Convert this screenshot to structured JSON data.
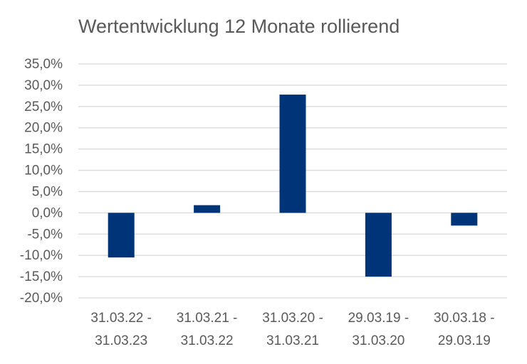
{
  "chart_data": {
    "type": "bar",
    "title": "Wertentwicklung 12 Monate rollierend",
    "xlabel": "",
    "ylabel": "",
    "categories": [
      [
        "31.03.22 -",
        "31.03.23"
      ],
      [
        "31.03.21 -",
        "31.03.22"
      ],
      [
        "31.03.20 -",
        "31.03.21"
      ],
      [
        "29.03.19 -",
        "31.03.20"
      ],
      [
        "30.03.18 -",
        "29.03.19"
      ]
    ],
    "values": [
      -10.5,
      1.8,
      27.8,
      -15.0,
      -3.0
    ],
    "ylim": [
      -20,
      35
    ],
    "yticks": [
      35,
      30,
      25,
      20,
      15,
      10,
      5,
      0,
      -5,
      -10,
      -15,
      -20
    ],
    "ytick_labels": [
      "35,0%",
      "30,0%",
      "25,0%",
      "20,0%",
      "15,0%",
      "10,0%",
      "5,0%",
      "0,0%",
      "-5,0%",
      "-10,0%",
      "-15,0%",
      "-20,0%"
    ],
    "grid": true,
    "legend": "none",
    "colors": {
      "bar": "#003478",
      "grid": "#d9d9d9",
      "text": "#595959"
    }
  }
}
